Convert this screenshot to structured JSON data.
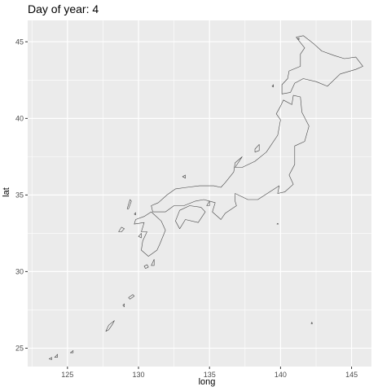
{
  "title": "Day of year: 4",
  "chart_data": {
    "type": "map",
    "title": "Day of year: 4",
    "xlabel": "long",
    "ylabel": "lat",
    "xlim": [
      122.2,
      146.4
    ],
    "ylim": [
      23.8,
      46.4
    ],
    "xticks": [
      125,
      130,
      135,
      140,
      145
    ],
    "yticks": [
      25,
      30,
      35,
      40,
      45
    ],
    "grid": true,
    "panel_background": "#ebebeb",
    "gridline_color": "#ffffff",
    "outline_color": "#444444",
    "polygons": [
      {
        "name": "Hokkaido",
        "coords": [
          [
            141.1,
            45.3
          ],
          [
            141.6,
            45.4
          ],
          [
            142.3,
            44.9
          ],
          [
            142.9,
            44.4
          ],
          [
            143.8,
            44.1
          ],
          [
            144.5,
            43.9
          ],
          [
            145.3,
            44.0
          ],
          [
            145.8,
            43.4
          ],
          [
            145.3,
            43.2
          ],
          [
            144.2,
            42.9
          ],
          [
            143.3,
            42.1
          ],
          [
            142.5,
            42.4
          ],
          [
            141.6,
            42.6
          ],
          [
            141.0,
            42.3
          ],
          [
            140.7,
            41.7
          ],
          [
            140.1,
            41.6
          ],
          [
            140.1,
            42.2
          ],
          [
            140.5,
            42.6
          ],
          [
            140.6,
            43.1
          ],
          [
            141.4,
            43.4
          ],
          [
            141.4,
            44.2
          ],
          [
            141.7,
            44.6
          ],
          [
            141.1,
            45.3
          ]
        ]
      },
      {
        "name": "Honshu",
        "coords": [
          [
            140.9,
            41.5
          ],
          [
            141.4,
            41.4
          ],
          [
            141.5,
            40.4
          ],
          [
            142.0,
            39.5
          ],
          [
            141.7,
            38.5
          ],
          [
            141.0,
            38.2
          ],
          [
            141.0,
            37.0
          ],
          [
            140.6,
            36.3
          ],
          [
            140.9,
            35.7
          ],
          [
            140.3,
            35.2
          ],
          [
            139.8,
            35.1
          ],
          [
            139.9,
            35.6
          ],
          [
            139.4,
            35.3
          ],
          [
            138.9,
            35.0
          ],
          [
            138.4,
            34.7
          ],
          [
            137.7,
            34.7
          ],
          [
            136.8,
            35.1
          ],
          [
            136.8,
            34.6
          ],
          [
            136.9,
            34.3
          ],
          [
            136.1,
            33.8
          ],
          [
            135.8,
            33.4
          ],
          [
            135.2,
            33.9
          ],
          [
            135.4,
            34.5
          ],
          [
            134.6,
            34.7
          ],
          [
            134.0,
            34.6
          ],
          [
            133.2,
            34.3
          ],
          [
            132.5,
            34.3
          ],
          [
            131.9,
            33.9
          ],
          [
            131.0,
            33.9
          ],
          [
            130.9,
            34.3
          ],
          [
            131.4,
            34.5
          ],
          [
            132.0,
            35.0
          ],
          [
            132.6,
            35.4
          ],
          [
            133.4,
            35.5
          ],
          [
            134.3,
            35.6
          ],
          [
            135.3,
            35.6
          ],
          [
            135.8,
            35.5
          ],
          [
            136.1,
            35.8
          ],
          [
            136.7,
            36.5
          ],
          [
            136.8,
            37.1
          ],
          [
            137.3,
            37.5
          ],
          [
            136.8,
            36.8
          ],
          [
            137.3,
            36.8
          ],
          [
            138.2,
            37.2
          ],
          [
            139.0,
            37.8
          ],
          [
            139.8,
            38.9
          ],
          [
            140.0,
            39.9
          ],
          [
            139.7,
            40.3
          ],
          [
            140.0,
            40.8
          ],
          [
            140.2,
            41.2
          ],
          [
            140.8,
            40.9
          ],
          [
            140.9,
            41.5
          ]
        ]
      },
      {
        "name": "Shikoku",
        "coords": [
          [
            132.6,
            33.3
          ],
          [
            132.9,
            34.0
          ],
          [
            133.6,
            34.3
          ],
          [
            134.4,
            34.2
          ],
          [
            134.7,
            33.9
          ],
          [
            134.2,
            33.2
          ],
          [
            133.3,
            33.4
          ],
          [
            132.9,
            32.8
          ],
          [
            132.6,
            33.3
          ]
        ]
      },
      {
        "name": "Kyushu",
        "coords": [
          [
            130.9,
            33.9
          ],
          [
            131.6,
            33.3
          ],
          [
            131.9,
            32.7
          ],
          [
            131.5,
            31.8
          ],
          [
            131.3,
            31.4
          ],
          [
            130.7,
            31.0
          ],
          [
            130.2,
            31.4
          ],
          [
            130.3,
            32.0
          ],
          [
            130.6,
            32.6
          ],
          [
            130.2,
            32.6
          ],
          [
            130.4,
            33.2
          ],
          [
            129.7,
            33.1
          ],
          [
            129.8,
            33.4
          ],
          [
            130.4,
            33.6
          ],
          [
            130.9,
            33.9
          ]
        ]
      },
      {
        "name": "Sado",
        "coords": [
          [
            138.2,
            38.0
          ],
          [
            138.5,
            38.3
          ],
          [
            138.5,
            37.9
          ],
          [
            138.2,
            37.8
          ],
          [
            138.2,
            38.0
          ]
        ]
      },
      {
        "name": "Oki",
        "coords": [
          [
            133.1,
            36.2
          ],
          [
            133.3,
            36.3
          ],
          [
            133.3,
            36.1
          ],
          [
            133.1,
            36.2
          ]
        ]
      },
      {
        "name": "Tsushima",
        "coords": [
          [
            129.2,
            34.1
          ],
          [
            129.4,
            34.7
          ],
          [
            129.5,
            34.6
          ],
          [
            129.3,
            34.1
          ],
          [
            129.2,
            34.1
          ]
        ]
      },
      {
        "name": "Iki",
        "coords": [
          [
            129.7,
            33.75
          ],
          [
            129.8,
            33.85
          ],
          [
            129.8,
            33.7
          ],
          [
            129.7,
            33.75
          ]
        ]
      },
      {
        "name": "Goto",
        "coords": [
          [
            128.6,
            32.6
          ],
          [
            128.8,
            32.9
          ],
          [
            129.0,
            32.8
          ],
          [
            128.8,
            32.6
          ],
          [
            128.6,
            32.6
          ]
        ]
      },
      {
        "name": "Amakusa",
        "coords": [
          [
            130.0,
            32.3
          ],
          [
            130.2,
            32.5
          ],
          [
            130.2,
            32.2
          ],
          [
            130.0,
            32.3
          ]
        ]
      },
      {
        "name": "Awaji",
        "coords": [
          [
            134.8,
            34.3
          ],
          [
            135.0,
            34.6
          ],
          [
            135.0,
            34.3
          ],
          [
            134.8,
            34.3
          ]
        ]
      },
      {
        "name": "Tanegashima",
        "coords": [
          [
            130.9,
            30.4
          ],
          [
            131.1,
            30.8
          ],
          [
            131.1,
            30.4
          ],
          [
            130.9,
            30.4
          ]
        ]
      },
      {
        "name": "Yakushima",
        "coords": [
          [
            130.4,
            30.35
          ],
          [
            130.6,
            30.45
          ],
          [
            130.7,
            30.3
          ],
          [
            130.5,
            30.2
          ],
          [
            130.4,
            30.35
          ]
        ]
      },
      {
        "name": "Amami",
        "coords": [
          [
            129.3,
            28.3
          ],
          [
            129.6,
            28.5
          ],
          [
            129.7,
            28.4
          ],
          [
            129.4,
            28.2
          ],
          [
            129.3,
            28.3
          ]
        ]
      },
      {
        "name": "Tokunoshima",
        "coords": [
          [
            128.9,
            27.8
          ],
          [
            129.0,
            27.9
          ],
          [
            129.0,
            27.7
          ],
          [
            128.9,
            27.8
          ]
        ]
      },
      {
        "name": "Okinawa",
        "coords": [
          [
            127.7,
            26.1
          ],
          [
            127.9,
            26.5
          ],
          [
            128.3,
            26.8
          ],
          [
            128.2,
            26.6
          ],
          [
            127.9,
            26.2
          ],
          [
            127.7,
            26.1
          ]
        ]
      },
      {
        "name": "Miyako",
        "coords": [
          [
            125.2,
            24.7
          ],
          [
            125.4,
            24.85
          ],
          [
            125.4,
            24.7
          ],
          [
            125.2,
            24.7
          ]
        ]
      },
      {
        "name": "Ishigaki",
        "coords": [
          [
            124.1,
            24.4
          ],
          [
            124.3,
            24.6
          ],
          [
            124.3,
            24.4
          ],
          [
            124.1,
            24.4
          ]
        ]
      },
      {
        "name": "Iriomote",
        "coords": [
          [
            123.7,
            24.3
          ],
          [
            123.9,
            24.4
          ],
          [
            123.9,
            24.25
          ],
          [
            123.7,
            24.3
          ]
        ]
      },
      {
        "name": "Rishiri",
        "coords": [
          [
            141.2,
            45.2
          ],
          [
            141.3,
            45.25
          ],
          [
            141.3,
            45.15
          ],
          [
            141.2,
            45.2
          ]
        ]
      },
      {
        "name": "Okushiri",
        "coords": [
          [
            139.4,
            42.1
          ],
          [
            139.5,
            42.2
          ],
          [
            139.5,
            42.05
          ],
          [
            139.4,
            42.1
          ]
        ]
      },
      {
        "name": "Hachijo",
        "coords": [
          [
            139.75,
            33.1
          ],
          [
            139.8,
            33.15
          ],
          [
            139.85,
            33.1
          ],
          [
            139.75,
            33.1
          ]
        ]
      },
      {
        "name": "Chichijima",
        "coords": [
          [
            142.15,
            26.6
          ],
          [
            142.2,
            26.7
          ],
          [
            142.25,
            26.6
          ],
          [
            142.15,
            26.6
          ]
        ]
      }
    ]
  }
}
